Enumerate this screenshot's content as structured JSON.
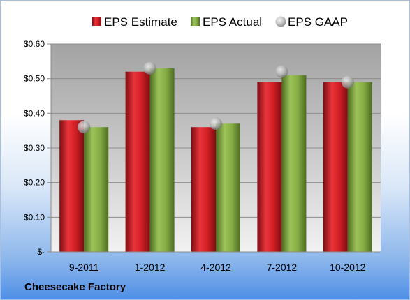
{
  "company": "Cheesecake Factory",
  "chart_data": {
    "type": "bar",
    "categories": [
      "9-2011",
      "1-2012",
      "4-2012",
      "7-2012",
      "10-2012"
    ],
    "series": [
      {
        "name": "EPS Estimate",
        "type": "bar",
        "color": "#c0181d",
        "values": [
          0.38,
          0.52,
          0.36,
          0.49,
          0.49
        ]
      },
      {
        "name": "EPS Actual",
        "type": "bar",
        "color": "#7aa33c",
        "values": [
          0.36,
          0.53,
          0.37,
          0.51,
          0.49
        ]
      },
      {
        "name": "EPS GAAP",
        "type": "scatter",
        "color": "#a6a6a6",
        "values": [
          0.36,
          0.53,
          0.37,
          0.52,
          0.49
        ]
      }
    ],
    "ylim": [
      0,
      0.6
    ],
    "yticks": [
      0,
      0.1,
      0.2,
      0.3,
      0.4,
      0.5,
      0.6
    ],
    "ytick_labels": [
      "$-",
      "$0.10",
      "$0.20",
      "$0.30",
      "$0.40",
      "$0.50",
      "$0.60"
    ],
    "grid": true,
    "legend_position": "top"
  }
}
